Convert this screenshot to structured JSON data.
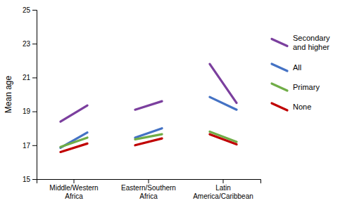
{
  "chart_data": {
    "type": "slope",
    "categories": [
      "Middle/Western\nAfrica",
      "Eastern/Southern\nAfrica",
      "Latin\nAmerica/Caribbean"
    ],
    "series": [
      {
        "name": "Secondary\nand higher",
        "color": "#7B3F9E",
        "values": [
          [
            18.4,
            19.35
          ],
          [
            19.1,
            19.6
          ],
          [
            21.8,
            19.5
          ]
        ]
      },
      {
        "name": "All",
        "color": "#4472C4",
        "values": [
          [
            16.85,
            17.75
          ],
          [
            17.45,
            18.0
          ],
          [
            19.85,
            19.1
          ]
        ]
      },
      {
        "name": "Primary",
        "color": "#70AD47",
        "values": [
          [
            16.9,
            17.45
          ],
          [
            17.35,
            17.65
          ],
          [
            17.8,
            17.2
          ]
        ]
      },
      {
        "name": "None",
        "color": "#C00000",
        "values": [
          [
            16.6,
            17.1
          ],
          [
            17.0,
            17.4
          ],
          [
            17.65,
            17.05
          ]
        ]
      }
    ],
    "ylabel": "Mean age",
    "ylim": [
      15,
      25
    ],
    "yticks": [
      15,
      17,
      19,
      21,
      23,
      25
    ],
    "grid": false,
    "legend": "right"
  }
}
